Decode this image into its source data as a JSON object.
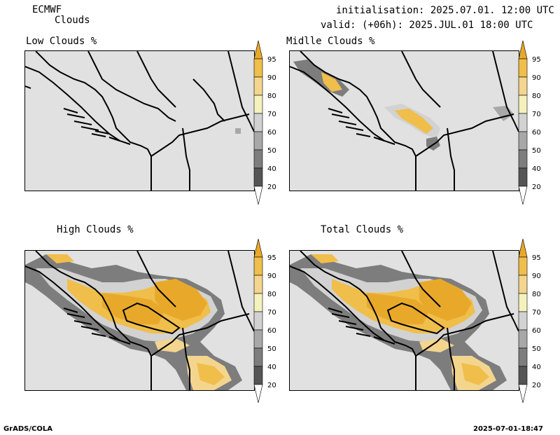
{
  "header": {
    "model": "ECMWF",
    "parameter": "Clouds",
    "initialisation": "initialisation: 2025.07.01. 12:00 UTC",
    "valid": "valid: (+06h): 2025.JUL.01 18:00 UTC"
  },
  "panels": [
    {
      "title": "Low Clouds %"
    },
    {
      "title": "Midlle Clouds %"
    },
    {
      "title": "High Clouds %"
    },
    {
      "title": "Total Clouds %"
    }
  ],
  "colorbar": {
    "labels": [
      "95",
      "90",
      "80",
      "70",
      "60",
      "50",
      "40",
      "20"
    ],
    "colors": [
      "#e8a92a",
      "#f0be4a",
      "#f3d58e",
      "#f4f1bd",
      "#d2d2d2",
      "#a8a8a8",
      "#7d7d7d",
      "#555555"
    ]
  },
  "footer": {
    "left": "GrADS/COLA",
    "right": "2025-07-01-18:47"
  }
}
